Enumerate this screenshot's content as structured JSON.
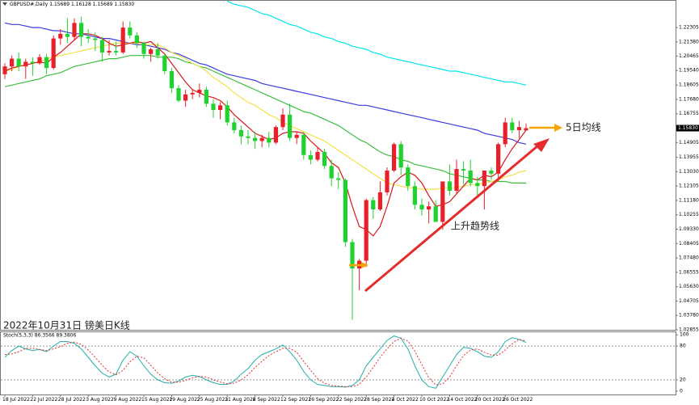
{
  "chart_data": [
    {
      "type": "candlestick",
      "title": "GBPUSD#,Daily 1.15689 1.16128 1.15689 1.15830",
      "caption": "2022年10月31日 镑美日K线",
      "ma_label": "5日均线",
      "trend_label": "上升趋势线",
      "categories": [
        "18 Jul 2022",
        null,
        null,
        null,
        "22 Jul 2022",
        null,
        null,
        null,
        "28 Jul 2022",
        null,
        null,
        null,
        "3 Aug 2022",
        null,
        null,
        null,
        "9 Aug 2022",
        null,
        null,
        null,
        "15 Aug 2022",
        null,
        null,
        null,
        "19 Aug 2022",
        null,
        null,
        null,
        "25 Aug 2022",
        null,
        null,
        null,
        "31 Aug 2022",
        null,
        null,
        null,
        "6 Sep 2022",
        null,
        null,
        null,
        "12 Sep 2022",
        null,
        null,
        null,
        "16 Sep 2022",
        null,
        null,
        null,
        "22 Sep 2022",
        null,
        null,
        null,
        "28 Sep 2022",
        null,
        null,
        null,
        "4 Oct 2022",
        null,
        null,
        null,
        "10 Oct 2022",
        null,
        null,
        null,
        "14 Oct 2022",
        null,
        null,
        null,
        "20 Oct 2022",
        null,
        null,
        null,
        "26 Oct 2022",
        null,
        null,
        null
      ],
      "open": [
        1.193,
        1.198,
        1.203,
        1.198,
        1.201,
        1.2,
        1.204,
        1.197,
        1.216,
        1.219,
        1.217,
        1.226,
        1.217,
        1.216,
        1.215,
        1.207,
        1.208,
        1.207,
        1.223,
        1.218,
        1.213,
        1.206,
        1.209,
        1.205,
        1.195,
        1.184,
        1.176,
        1.18,
        1.181,
        1.183,
        1.174,
        1.17,
        1.173,
        1.162,
        1.157,
        1.153,
        1.152,
        1.15,
        1.152,
        1.149,
        1.159,
        1.167,
        1.152,
        1.154,
        1.141,
        1.138,
        1.143,
        1.134,
        1.126,
        1.125,
        1.085,
        1.068,
        1.073,
        1.112,
        1.106,
        1.117,
        1.131,
        1.148,
        1.133,
        1.121,
        1.109,
        1.106,
        1.108,
        1.098,
        1.124,
        1.118,
        1.132,
        1.131,
        1.123,
        1.121,
        1.131,
        1.129,
        1.148,
        1.162,
        1.157,
        1.15689
      ],
      "high": [
        1.2,
        1.205,
        1.207,
        1.203,
        1.204,
        1.206,
        1.206,
        1.218,
        1.222,
        1.229,
        1.229,
        1.23,
        1.222,
        1.22,
        1.217,
        1.215,
        1.214,
        1.227,
        1.227,
        1.22,
        1.214,
        1.21,
        1.213,
        1.206,
        1.197,
        1.186,
        1.183,
        1.183,
        1.187,
        1.185,
        1.177,
        1.175,
        1.176,
        1.165,
        1.16,
        1.157,
        1.156,
        1.154,
        1.156,
        1.16,
        1.171,
        1.174,
        1.156,
        1.156,
        1.144,
        1.146,
        1.145,
        1.138,
        1.13,
        1.126,
        1.087,
        1.074,
        1.113,
        1.114,
        1.124,
        1.133,
        1.149,
        1.15,
        1.135,
        1.124,
        1.113,
        1.111,
        1.112,
        1.123,
        1.135,
        1.138,
        1.137,
        1.138,
        1.127,
        1.13,
        1.133,
        1.149,
        1.165,
        1.165,
        1.163,
        1.16128
      ],
      "low": [
        1.19,
        1.195,
        1.195,
        1.19,
        1.192,
        1.199,
        1.193,
        1.196,
        1.212,
        1.213,
        1.215,
        1.211,
        1.213,
        1.208,
        1.201,
        1.205,
        1.205,
        1.206,
        1.216,
        1.21,
        1.203,
        1.201,
        1.203,
        1.193,
        1.181,
        1.175,
        1.172,
        1.177,
        1.178,
        1.172,
        1.165,
        1.164,
        1.16,
        1.155,
        1.148,
        1.148,
        1.145,
        1.146,
        1.146,
        1.148,
        1.157,
        1.15,
        1.148,
        1.138,
        1.135,
        1.137,
        1.132,
        1.121,
        1.119,
        1.082,
        1.035,
        1.054,
        1.069,
        1.1,
        1.105,
        1.115,
        1.13,
        1.128,
        1.118,
        1.106,
        1.102,
        1.097,
        1.098,
        1.093,
        1.115,
        1.116,
        1.122,
        1.121,
        1.114,
        1.106,
        1.125,
        1.124,
        1.146,
        1.155,
        1.152,
        1.15689
      ],
      "close": [
        1.198,
        1.203,
        1.198,
        1.201,
        1.2,
        1.204,
        1.197,
        1.216,
        1.219,
        1.217,
        1.226,
        1.217,
        1.216,
        1.215,
        1.207,
        1.208,
        1.207,
        1.223,
        1.218,
        1.213,
        1.206,
        1.209,
        1.205,
        1.195,
        1.184,
        1.176,
        1.18,
        1.181,
        1.183,
        1.174,
        1.17,
        1.173,
        1.162,
        1.157,
        1.153,
        1.152,
        1.15,
        1.152,
        1.149,
        1.159,
        1.167,
        1.152,
        1.154,
        1.141,
        1.138,
        1.143,
        1.134,
        1.126,
        1.125,
        1.085,
        1.068,
        1.073,
        1.112,
        1.106,
        1.117,
        1.131,
        1.148,
        1.133,
        1.121,
        1.109,
        1.106,
        1.108,
        1.098,
        1.124,
        1.118,
        1.132,
        1.131,
        1.123,
        1.121,
        1.131,
        1.129,
        1.148,
        1.162,
        1.157,
        1.159,
        1.1583
      ],
      "up_color": "#e8202a",
      "down_color": "#1fd22e",
      "moving_averages": [
        {
          "color": "#00e5ee",
          "values": [
            null,
            null,
            null,
            null,
            null,
            null,
            null,
            null,
            null,
            null,
            null,
            null,
            null,
            null,
            null,
            null,
            null,
            null,
            null,
            null,
            null,
            null,
            null,
            null,
            null,
            null,
            null,
            null,
            null,
            null,
            null,
            null,
            1.24,
            1.238,
            1.237,
            1.236,
            1.234,
            1.232,
            1.231,
            1.229,
            1.227,
            1.225,
            1.224,
            1.222,
            1.22,
            1.219,
            1.217,
            1.216,
            1.214,
            1.213,
            1.211,
            1.21,
            1.209,
            1.207,
            1.206,
            1.204,
            1.203,
            1.202,
            1.201,
            1.2,
            1.199,
            1.198,
            1.197,
            1.196,
            1.195,
            1.195,
            1.194,
            1.193,
            1.192,
            1.191,
            1.19,
            1.189,
            1.188,
            1.188,
            1.187,
            1.186
          ]
        },
        {
          "color": "#3a3adf",
          "values": [
            1.226,
            1.225,
            1.225,
            1.224,
            1.223,
            1.223,
            1.222,
            1.221,
            1.221,
            1.22,
            1.219,
            1.219,
            1.218,
            1.217,
            1.216,
            1.216,
            1.215,
            1.214,
            1.213,
            1.212,
            1.212,
            1.211,
            1.21,
            1.209,
            1.207,
            1.206,
            1.204,
            1.202,
            1.2,
            1.199,
            1.197,
            1.195,
            1.193,
            1.192,
            1.191,
            1.19,
            1.189,
            1.187,
            1.186,
            1.185,
            1.184,
            1.183,
            1.182,
            1.181,
            1.18,
            1.179,
            1.178,
            1.177,
            1.176,
            1.175,
            1.174,
            1.173,
            1.173,
            1.172,
            1.171,
            1.17,
            1.169,
            1.168,
            1.167,
            1.166,
            1.165,
            1.164,
            1.163,
            1.162,
            1.161,
            1.16,
            1.159,
            1.158,
            1.157,
            1.155,
            1.154,
            1.153,
            1.152,
            1.151,
            1.149,
            1.148
          ]
        },
        {
          "color": "#3cc03c",
          "values": [
            1.185,
            1.186,
            1.187,
            1.188,
            1.189,
            1.19,
            1.192,
            1.193,
            1.194,
            1.196,
            1.198,
            1.199,
            1.2,
            1.201,
            1.202,
            1.203,
            1.203,
            1.204,
            1.205,
            1.205,
            1.205,
            1.205,
            1.204,
            1.204,
            1.204,
            1.203,
            1.201,
            1.2,
            1.198,
            1.197,
            1.195,
            1.193,
            1.191,
            1.189,
            1.187,
            1.185,
            1.183,
            1.181,
            1.179,
            1.177,
            1.175,
            1.173,
            1.171,
            1.169,
            1.168,
            1.166,
            1.164,
            1.162,
            1.16,
            1.157,
            1.154,
            1.151,
            1.149,
            1.146,
            1.143,
            1.141,
            1.14,
            1.138,
            1.137,
            1.135,
            1.134,
            1.133,
            1.132,
            1.131,
            1.129,
            1.128,
            1.127,
            1.126,
            1.125,
            1.125,
            1.124,
            1.124,
            1.124,
            1.123,
            1.123,
            1.123
          ]
        },
        {
          "color": "#f2e14a",
          "values": [
            1.195,
            1.196,
            1.198,
            1.199,
            1.2,
            1.201,
            1.203,
            1.204,
            1.205,
            1.206,
            1.207,
            1.208,
            1.209,
            1.21,
            1.211,
            1.212,
            1.213,
            1.213,
            1.213,
            1.213,
            1.212,
            1.212,
            1.212,
            1.21,
            1.207,
            1.205,
            1.203,
            1.2,
            1.198,
            1.195,
            1.191,
            1.188,
            1.185,
            1.181,
            1.178,
            1.175,
            1.173,
            1.17,
            1.167,
            1.165,
            1.162,
            1.16,
            1.158,
            1.156,
            1.154,
            1.152,
            1.15,
            1.147,
            1.144,
            1.141,
            1.138,
            1.135,
            1.132,
            1.129,
            1.126,
            1.123,
            1.122,
            1.121,
            1.12,
            1.12,
            1.119,
            1.119,
            1.119,
            1.12,
            1.12,
            1.12,
            1.121,
            1.122,
            1.122,
            1.123,
            1.124,
            1.125,
            1.127,
            1.128,
            1.13,
            1.131
          ]
        },
        {
          "color": "#d81818",
          "values": [
            1.195,
            1.197,
            1.198,
            1.199,
            1.2,
            1.201,
            1.2,
            1.204,
            1.207,
            1.211,
            1.215,
            1.219,
            1.219,
            1.218,
            1.216,
            1.213,
            1.211,
            1.212,
            1.213,
            1.214,
            1.213,
            1.214,
            1.21,
            1.206,
            1.2,
            1.194,
            1.188,
            1.183,
            1.181,
            1.179,
            1.178,
            1.176,
            1.172,
            1.167,
            1.163,
            1.159,
            1.155,
            1.153,
            1.151,
            1.152,
            1.155,
            1.156,
            1.156,
            1.155,
            1.15,
            1.146,
            1.142,
            1.136,
            1.133,
            1.123,
            1.108,
            1.095,
            1.093,
            1.089,
            1.095,
            1.108,
            1.123,
            1.127,
            1.13,
            1.128,
            1.123,
            1.115,
            1.108,
            1.109,
            1.111,
            1.116,
            1.121,
            1.126,
            1.125,
            1.128,
            1.127,
            1.13,
            1.138,
            1.145,
            1.151,
            1.157
          ]
        }
      ],
      "ylim": [
        1.02855,
        1.24075
      ],
      "yticks": [
        1.22305,
        {
          "value": 1.2138,
          "label": "1.21380"
        },
        1.20465,
        {
          "value": 1.1954,
          "label": "1.19540"
        },
        1.18605,
        {
          "value": 1.1768,
          "label": "1.17680"
        },
        1.16755,
        1.14905,
        1.13955,
        {
          "value": 1.1303,
          "label": "1.13030"
        },
        1.12105,
        {
          "value": 1.1118,
          "label": "1.11180"
        },
        1.10255,
        {
          "value": 1.0933,
          "label": "1.09330"
        },
        1.08405,
        {
          "value": 1.0748,
          "label": "1.07480"
        },
        1.06555,
        {
          "value": 1.0563,
          "label": "1.05630"
        },
        1.04705,
        {
          "value": 1.0378,
          "label": "1.03780"
        },
        1.02855
      ],
      "last_price": {
        "value": 1.1583,
        "label": "1.15830"
      },
      "grid": false
    },
    {
      "type": "line",
      "title": "Stoch(5,3,3) 86.3566 89.3806",
      "series": [
        {
          "color": "#22b0a8",
          "dashed": false,
          "values": [
            60,
            72,
            80,
            75,
            72,
            74,
            70,
            80,
            88,
            88,
            85,
            75,
            60,
            45,
            32,
            25,
            30,
            55,
            70,
            62,
            45,
            30,
            20,
            15,
            14,
            18,
            25,
            28,
            26,
            20,
            15,
            12,
            12,
            18,
            30,
            40,
            55,
            65,
            70,
            75,
            82,
            70,
            55,
            35,
            20,
            12,
            10,
            8,
            8,
            7,
            10,
            20,
            45,
            60,
            75,
            90,
            98,
            94,
            75,
            45,
            20,
            8,
            5,
            25,
            45,
            65,
            78,
            76,
            70,
            62,
            60,
            70,
            88,
            95,
            92,
            86.3566
          ]
        },
        {
          "color": "#e03030",
          "dashed": true,
          "values": [
            65,
            66,
            70,
            76,
            76,
            74,
            72,
            75,
            79,
            85,
            87,
            83,
            73,
            60,
            46,
            34,
            29,
            37,
            52,
            62,
            59,
            46,
            32,
            22,
            16,
            16,
            19,
            24,
            26,
            25,
            20,
            16,
            13,
            14,
            20,
            29,
            42,
            53,
            63,
            70,
            76,
            76,
            69,
            53,
            37,
            22,
            14,
            10,
            9,
            8,
            8,
            12,
            25,
            42,
            60,
            75,
            88,
            94,
            89,
            71,
            47,
            24,
            11,
            13,
            25,
            45,
            63,
            73,
            75,
            69,
            64,
            64,
            73,
            84,
            92,
            89.3806
          ]
        }
      ],
      "ylim": [
        -6,
        106
      ],
      "yticks": [
        100,
        80,
        20,
        0
      ],
      "level_lines": [
        20,
        80
      ]
    }
  ]
}
